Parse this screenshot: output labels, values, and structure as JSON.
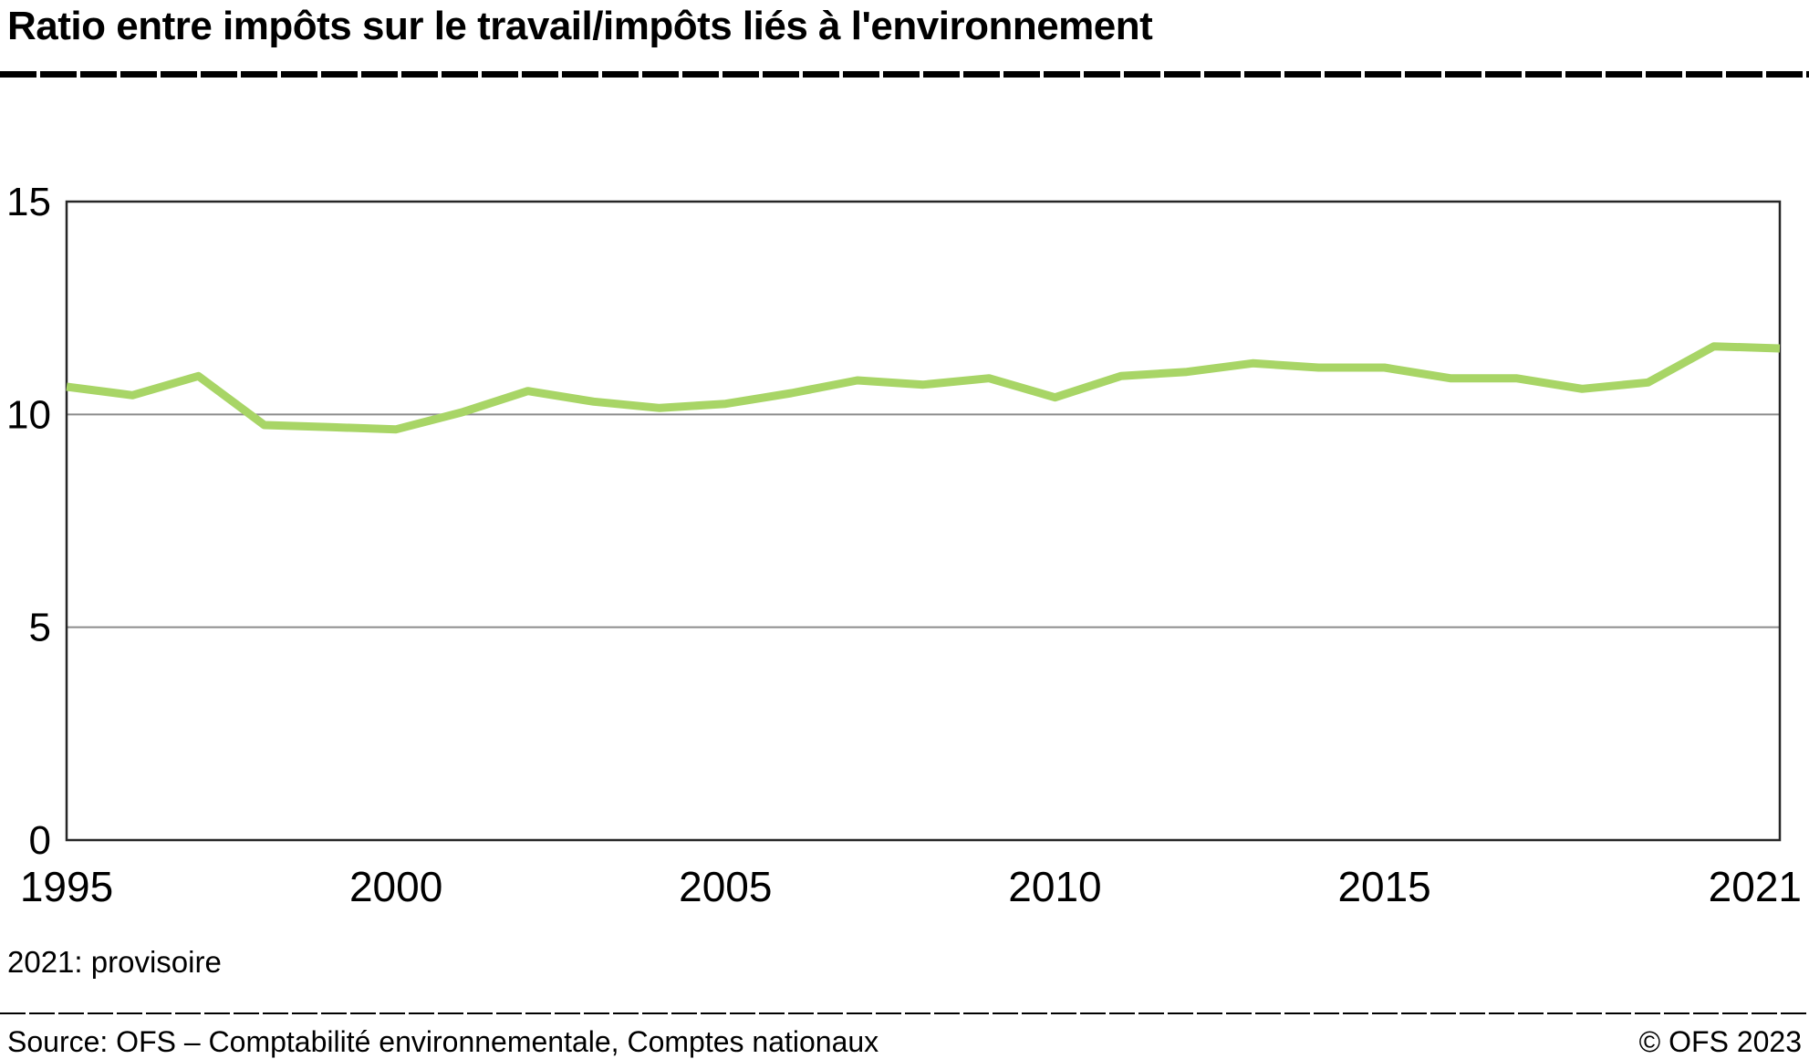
{
  "title": "Ratio entre impôts sur le travail/impôts liés à l'environnement",
  "note": "2021: provisoire",
  "footer": {
    "source": "Source: OFS – Comptabilité environnementale, Comptes nationaux",
    "copyright": "© OFS 2023"
  },
  "chart_data": {
    "type": "line",
    "title": "Ratio entre impôts sur le travail/impôts liés à l'environnement",
    "xlabel": "",
    "ylabel": "",
    "ylim": [
      0,
      15
    ],
    "yticks": [
      0,
      5,
      10,
      15
    ],
    "xticks": [
      1995,
      2000,
      2005,
      2010,
      2015,
      2021
    ],
    "grid": true,
    "legend": "none",
    "line_color": "#a8d566",
    "x": [
      1995,
      1996,
      1997,
      1998,
      1999,
      2000,
      2001,
      2002,
      2003,
      2004,
      2005,
      2006,
      2007,
      2008,
      2009,
      2010,
      2011,
      2012,
      2013,
      2014,
      2015,
      2016,
      2017,
      2018,
      2019,
      2020,
      2021
    ],
    "series": [
      {
        "name": "Ratio impôts sur le travail / impôts liés à l'environnement",
        "values": [
          10.65,
          10.45,
          10.9,
          9.75,
          9.7,
          9.65,
          10.05,
          10.55,
          10.3,
          10.15,
          10.25,
          10.5,
          10.8,
          10.7,
          10.85,
          10.4,
          10.9,
          11.0,
          11.2,
          11.1,
          11.1,
          10.85,
          10.85,
          10.6,
          10.75,
          11.6,
          11.55
        ]
      }
    ]
  }
}
